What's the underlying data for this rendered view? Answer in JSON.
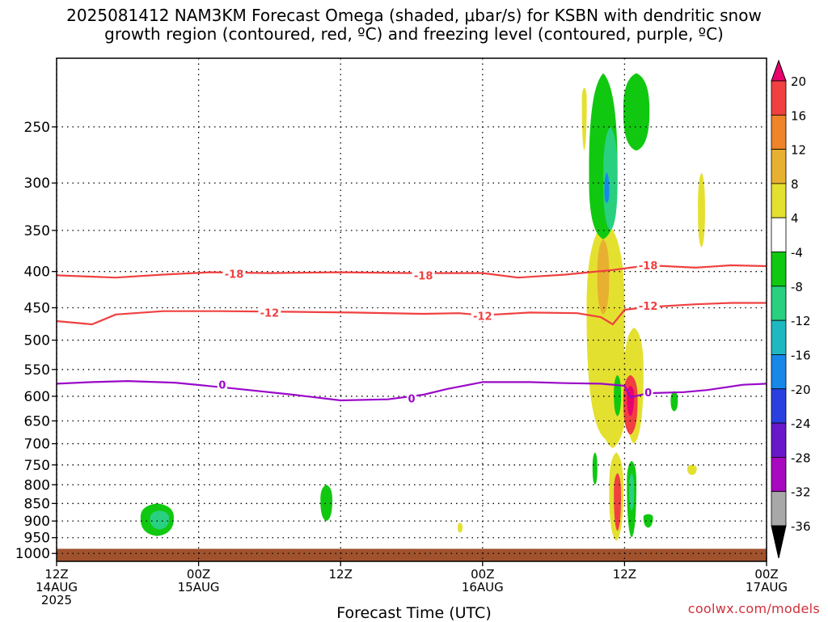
{
  "title_line1": "2025081412 NAM3KM Forecast Omega (shaded, μbar/s) for KSBN with dendritic snow",
  "title_line2": "growth region (contoured, red, ºC) and freezing level (contoured, purple, ºC)",
  "credit": "coolwx.com/models",
  "chart_data": {
    "type": "time-height cross section",
    "title": "2025081412 NAM3KM Forecast Omega (shaded, μbar/s) for KSBN with dendritic snow growth region (contoured, red, ºC) and freezing level (contoured, purple, ºC)",
    "xlabel": "Forecast Time (UTC)",
    "ylabel": "",
    "x_ticks": [
      {
        "hour": 0,
        "l1": "12Z",
        "l2": "14AUG",
        "l3": "2025"
      },
      {
        "hour": 12,
        "l1": "00Z",
        "l2": "15AUG",
        "l3": ""
      },
      {
        "hour": 24,
        "l1": "12Z",
        "l2": "",
        "l3": ""
      },
      {
        "hour": 36,
        "l1": "00Z",
        "l2": "16AUG",
        "l3": ""
      },
      {
        "hour": 48,
        "l1": "12Z",
        "l2": "",
        "l3": ""
      },
      {
        "hour": 60,
        "l1": "00Z",
        "l2": "17AUG",
        "l3": ""
      }
    ],
    "xlim_hours": [
      0,
      60
    ],
    "ylim_hPa": [
      1026,
      200
    ],
    "y_scale": "log pressure",
    "y_ticks": [
      250,
      300,
      350,
      400,
      450,
      500,
      550,
      600,
      650,
      700,
      750,
      800,
      850,
      900,
      950,
      1000
    ],
    "grid": true,
    "colorbar": {
      "levels": [
        20,
        16,
        12,
        8,
        4,
        -4,
        -8,
        -12,
        -16,
        -20,
        -24,
        -28,
        -32,
        -36
      ],
      "colors": [
        "#e8006e",
        "#f04040",
        "#ee8528",
        "#e8b030",
        "#e4e030",
        "#ffffff",
        "#10c810",
        "#28d080",
        "#20b8c0",
        "#1888e8",
        "#2840e0",
        "#6818c8",
        "#a808c0",
        "#a8a8a8",
        "#000000"
      ]
    },
    "contours": [
      {
        "name": "dendritic -18",
        "color": "#f04040",
        "label": "-18",
        "points": [
          [
            0,
            405
          ],
          [
            5,
            408
          ],
          [
            9,
            404
          ],
          [
            13,
            401
          ],
          [
            18,
            402
          ],
          [
            24,
            401
          ],
          [
            30,
            402
          ],
          [
            36,
            402
          ],
          [
            39,
            408
          ],
          [
            43,
            404
          ],
          [
            45,
            401
          ],
          [
            47,
            398
          ],
          [
            50,
            392
          ],
          [
            54,
            395
          ],
          [
            57,
            392
          ],
          [
            60,
            393
          ]
        ]
      },
      {
        "name": "dendritic -12",
        "color": "#f04040",
        "label": "-12",
        "points": [
          [
            0,
            470
          ],
          [
            3,
            475
          ],
          [
            5,
            460
          ],
          [
            9,
            455
          ],
          [
            14,
            455
          ],
          [
            20,
            456
          ],
          [
            25,
            457
          ],
          [
            31,
            459
          ],
          [
            34,
            458
          ],
          [
            36,
            461
          ],
          [
            40,
            457
          ],
          [
            44,
            458
          ],
          [
            46,
            464
          ],
          [
            47,
            475
          ],
          [
            48,
            453
          ],
          [
            50,
            449
          ],
          [
            54,
            445
          ],
          [
            57,
            443
          ],
          [
            60,
            443
          ]
        ]
      },
      {
        "name": "freezing level 0",
        "color": "#9a08c8",
        "label": "0",
        "points": [
          [
            0,
            576
          ],
          [
            3,
            573
          ],
          [
            6,
            571
          ],
          [
            10,
            574
          ],
          [
            15,
            585
          ],
          [
            20,
            597
          ],
          [
            24,
            608
          ],
          [
            28,
            606
          ],
          [
            31,
            597
          ],
          [
            33,
            586
          ],
          [
            36,
            573
          ],
          [
            40,
            573
          ],
          [
            43,
            575
          ],
          [
            46,
            576
          ],
          [
            48,
            580
          ],
          [
            48.5,
            602
          ],
          [
            50,
            594
          ],
          [
            53,
            592
          ],
          [
            55,
            588
          ],
          [
            58,
            578
          ],
          [
            60,
            576
          ]
        ]
      }
    ],
    "contour_labels": [
      {
        "text": "-18",
        "hour": 15,
        "p": 403,
        "color": "#f04040"
      },
      {
        "text": "-18",
        "hour": 31,
        "p": 405,
        "color": "#f04040"
      },
      {
        "text": "-18",
        "hour": 50,
        "p": 392,
        "color": "#f04040"
      },
      {
        "text": "-12",
        "hour": 18,
        "p": 457,
        "color": "#f04040"
      },
      {
        "text": "-12",
        "hour": 36,
        "p": 462,
        "color": "#f04040"
      },
      {
        "text": "-12",
        "hour": 50,
        "p": 447,
        "color": "#f04040"
      },
      {
        "text": "0",
        "hour": 14,
        "p": 578,
        "color": "#9a08c8"
      },
      {
        "text": "0",
        "hour": 30,
        "p": 604,
        "color": "#9a08c8"
      },
      {
        "text": "0",
        "hour": 50,
        "p": 592,
        "color": "#9a08c8"
      }
    ],
    "omega_regions": [
      {
        "color": "#e4e030",
        "hour": 46.4,
        "p": 470,
        "dh": 1.6,
        "dp_top": 340,
        "dp_bot": 690
      },
      {
        "color": "#e4e030",
        "hour": 48.8,
        "p": 560,
        "dh": 0.8,
        "dp_top": 480,
        "dp_bot": 700
      },
      {
        "color": "#e4e030",
        "hour": 44.6,
        "p": 230,
        "dh": 0.2,
        "dp_top": 220,
        "dp_bot": 270
      },
      {
        "color": "#e4e030",
        "hour": 54.5,
        "p": 330,
        "dh": 0.3,
        "dp_top": 290,
        "dp_bot": 370
      },
      {
        "color": "#e8b030",
        "hour": 46.2,
        "p": 410,
        "dh": 0.5,
        "dp_top": 360,
        "dp_bot": 460
      },
      {
        "color": "#10c810",
        "hour": 46.2,
        "p": 300,
        "dh": 1.2,
        "dp_top": 210,
        "dp_bot": 360
      },
      {
        "color": "#10c810",
        "hour": 49.0,
        "p": 240,
        "dh": 1.1,
        "dp_top": 210,
        "dp_bot": 270
      },
      {
        "color": "#28d080",
        "hour": 46.8,
        "p": 300,
        "dh": 0.6,
        "dp_top": 250,
        "dp_bot": 350
      },
      {
        "color": "#1888e8",
        "hour": 46.5,
        "p": 310,
        "dh": 0.2,
        "dp_top": 290,
        "dp_bot": 320
      },
      {
        "color": "#e4e030",
        "hour": 47.0,
        "p": 560,
        "dh": 1.3,
        "dp_top": 500,
        "dp_bot": 710
      },
      {
        "color": "#f04040",
        "hour": 48.5,
        "p": 610,
        "dh": 0.6,
        "dp_top": 560,
        "dp_bot": 680
      },
      {
        "color": "#e8006e",
        "hour": 48.5,
        "p": 600,
        "dh": 0.3,
        "dp_top": 580,
        "dp_bot": 640
      },
      {
        "color": "#10c810",
        "hour": 47.4,
        "p": 600,
        "dh": 0.3,
        "dp_top": 560,
        "dp_bot": 640
      },
      {
        "color": "#e4e030",
        "hour": 47.3,
        "p": 820,
        "dh": 0.6,
        "dp_top": 720,
        "dp_bot": 960
      },
      {
        "color": "#f04040",
        "hour": 47.4,
        "p": 830,
        "dh": 0.3,
        "dp_top": 770,
        "dp_bot": 930
      },
      {
        "color": "#10c810",
        "hour": 48.6,
        "p": 800,
        "dh": 0.4,
        "dp_top": 740,
        "dp_bot": 950
      },
      {
        "color": "#28d080",
        "hour": 48.6,
        "p": 820,
        "dh": 0.2,
        "dp_top": 770,
        "dp_bot": 870
      },
      {
        "color": "#10c810",
        "hour": 45.5,
        "p": 760,
        "dh": 0.2,
        "dp_top": 720,
        "dp_bot": 800
      },
      {
        "color": "#10c810",
        "hour": 52.2,
        "p": 610,
        "dh": 0.3,
        "dp_top": 590,
        "dp_bot": 630
      },
      {
        "color": "#e4e030",
        "hour": 53.7,
        "p": 760,
        "dh": 0.4,
        "dp_top": 750,
        "dp_bot": 775
      },
      {
        "color": "#10c810",
        "hour": 50.0,
        "p": 890,
        "dh": 0.4,
        "dp_top": 880,
        "dp_bot": 920
      },
      {
        "color": "#10c810",
        "hour": 8.5,
        "p": 895,
        "dh": 1.4,
        "dp_top": 850,
        "dp_bot": 945
      },
      {
        "color": "#28d080",
        "hour": 8.7,
        "p": 895,
        "dh": 0.8,
        "dp_top": 870,
        "dp_bot": 925
      },
      {
        "color": "#10c810",
        "hour": 22.8,
        "p": 845,
        "dh": 0.5,
        "dp_top": 800,
        "dp_bot": 900
      },
      {
        "color": "#e4e030",
        "hour": 34.1,
        "p": 920,
        "dh": 0.2,
        "dp_top": 905,
        "dp_bot": 935
      }
    ],
    "terrain": {
      "color": "#a0522d",
      "top_hPa": 985
    }
  }
}
